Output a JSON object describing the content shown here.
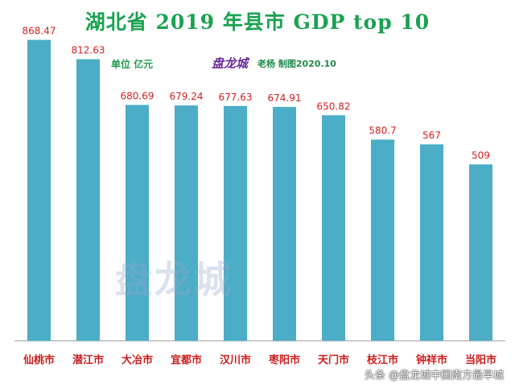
{
  "title": "湖北省 2019 年县市 GDP top 10",
  "unit_note": "单位  亿元",
  "brand": "盘龙城",
  "credit": "老杨 制图2020.10",
  "watermark": "盘龙城",
  "footer_credit": "头条 @盘龙城中国南方最早城",
  "colors": {
    "title": "#1aa251",
    "bar": "#4badc6",
    "value_label": "#d21f1f",
    "category_label": "#cc1c1c",
    "unit_note": "#1f9a4a",
    "brand": "#6a2b9a",
    "credit": "#1f8a4a",
    "axis": "#9a9a9a"
  },
  "chart_data": {
    "type": "bar",
    "title": "湖北省 2019 年县市 GDP top 10",
    "categories": [
      "仙桃市",
      "潜江市",
      "大冶市",
      "宜都市",
      "汉川市",
      "枣阳市",
      "天门市",
      "枝江市",
      "钟祥市",
      "当阳市"
    ],
    "values": [
      868.47,
      812.63,
      680.69,
      679.24,
      677.63,
      674.91,
      650.82,
      580.7,
      567,
      509
    ],
    "value_labels": [
      "868.47",
      "812.63",
      "680.69",
      "679.24",
      "677.63",
      "674.91",
      "650.82",
      "580.7",
      "567",
      "509"
    ],
    "unit": "亿元",
    "ylim": [
      0,
      900
    ],
    "grid": false,
    "legend": "none"
  }
}
